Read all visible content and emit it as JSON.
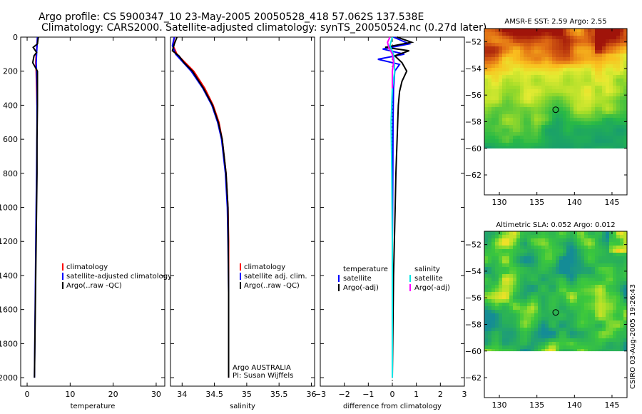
{
  "title_line1": "Argo profile: CS 5900347_10 23-May-2005 20050528_418 57.062S 137.538E",
  "title_line2": "Climatology: CARS2000. Satellite-adjusted climatology: synTS_20050524.nc (0.27d later)",
  "credit": "CSIRO 03-Aug-2005 19:26:43",
  "colors": {
    "climatology": "#ff0000",
    "satellite": "#0000ff",
    "argo": "#000000",
    "salinity": "#00e5e5",
    "salinity_argo": "#ff00ff"
  },
  "chart_data": [
    {
      "id": "temperature",
      "type": "line",
      "xlabel": "temperature",
      "xlim": [
        -1.5,
        32
      ],
      "ylim": [
        2050,
        0
      ],
      "xticks": [
        0,
        10,
        20,
        30
      ],
      "yticks": [
        0,
        200,
        400,
        600,
        800,
        1000,
        1200,
        1400,
        1600,
        1800,
        2000
      ],
      "legend": [
        "climatology",
        "satellite-adjusted climatology",
        "Argo(..raw -QC)"
      ],
      "series": [
        {
          "name": "climatology",
          "color": "climatology",
          "depth": [
            0,
            50,
            100,
            150,
            200,
            300,
            400
          ],
          "values": [
            2.4,
            2.3,
            2.1,
            2.0,
            2.1,
            2.2,
            2.3
          ]
        },
        {
          "name": "satellite-adjusted climatology",
          "color": "satellite",
          "depth": [
            0,
            50,
            100,
            150,
            200,
            300,
            500,
            800,
            1000,
            1500,
            2000
          ],
          "values": [
            2.4,
            2.3,
            2.2,
            2.1,
            2.2,
            2.3,
            2.3,
            2.2,
            2.1,
            1.9,
            1.7
          ]
        },
        {
          "name": "Argo(..raw -QC)",
          "color": "argo",
          "depth": [
            0,
            40,
            60,
            90,
            110,
            150,
            200,
            300,
            400,
            600,
            800,
            1000,
            1400,
            1800,
            2000
          ],
          "values": [
            2.6,
            2.4,
            1.4,
            2.2,
            1.6,
            1.3,
            2.4,
            2.4,
            2.4,
            2.3,
            2.3,
            2.2,
            2.0,
            1.8,
            1.7
          ]
        }
      ]
    },
    {
      "id": "salinity",
      "type": "line",
      "xlabel": "salinity",
      "xlim": [
        33.82,
        36.05
      ],
      "ylim": [
        2050,
        0
      ],
      "xticks": [
        34,
        34.5,
        35,
        35.5,
        36
      ],
      "legend": [
        "climatology",
        "satellite adj. clim.",
        "Argo(..raw -QC)"
      ],
      "annotation": [
        "Argo AUSTRALIA",
        "PI: Susan Wijffels"
      ],
      "series": [
        {
          "name": "climatology",
          "color": "climatology",
          "depth": [
            0,
            50,
            100,
            150,
            200,
            300,
            400,
            500,
            600,
            800,
            1000,
            1200,
            1500,
            2000
          ],
          "values": [
            33.88,
            33.86,
            33.92,
            34.05,
            34.18,
            34.35,
            34.48,
            34.57,
            34.62,
            34.68,
            34.71,
            34.72,
            34.72,
            34.72
          ]
        },
        {
          "name": "satellite adj. clim.",
          "color": "satellite",
          "depth": [
            0,
            50,
            100,
            150,
            200,
            300,
            400,
            500,
            600,
            800,
            1000,
            1200,
            1500,
            2000
          ],
          "values": [
            33.88,
            33.85,
            33.9,
            34.02,
            34.14,
            34.32,
            34.46,
            34.55,
            34.61,
            34.67,
            34.7,
            34.71,
            34.72,
            34.72
          ]
        },
        {
          "name": "Argo(..raw -QC)",
          "color": "argo",
          "depth": [
            0,
            40,
            80,
            110,
            150,
            200,
            300,
            400,
            500,
            600,
            800,
            1000,
            1500,
            2000
          ],
          "values": [
            33.92,
            33.88,
            33.85,
            33.95,
            34.03,
            34.16,
            34.33,
            34.47,
            34.56,
            34.62,
            34.68,
            34.71,
            34.72,
            34.72
          ]
        }
      ]
    },
    {
      "id": "difference",
      "type": "line",
      "xlabel": "difference from climatology",
      "xlim": [
        -3,
        3
      ],
      "ylim": [
        2050,
        0
      ],
      "xticks": [
        -3,
        -2,
        -1,
        0,
        1,
        2,
        3
      ],
      "legend_left": [
        "temperature",
        "satellite",
        "Argo(-adj)"
      ],
      "legend_right": [
        "salinity",
        "satellite",
        "Argo(-adj)"
      ],
      "series": [
        {
          "name": "temperature satellite",
          "color": "satellite",
          "depth": [
            0,
            40,
            70,
            100,
            130,
            160,
            200,
            300,
            500,
            800,
            1200,
            1600,
            2000
          ],
          "values": [
            0.05,
            0.7,
            -0.4,
            0.5,
            -0.6,
            0.3,
            0.1,
            0.05,
            0.03,
            0.02,
            0.0,
            0.0,
            0.0
          ]
        },
        {
          "name": "temperature Argo(-adj)",
          "color": "argo",
          "depth": [
            0,
            30,
            60,
            80,
            110,
            150,
            200,
            260,
            320,
            400,
            600,
            800,
            1000,
            1400,
            2000
          ],
          "values": [
            0.2,
            0.8,
            -0.3,
            0.7,
            0.1,
            0.4,
            0.6,
            0.4,
            0.3,
            0.25,
            0.2,
            0.15,
            0.12,
            0.05,
            0.0
          ]
        },
        {
          "name": "salinity satellite",
          "color": "salinity",
          "depth": [
            0,
            50,
            100,
            200,
            300,
            500,
            800,
            1200,
            2000
          ],
          "values": [
            0.0,
            -0.1,
            0.05,
            0.1,
            0.0,
            -0.05,
            -0.02,
            0.0,
            0.0
          ]
        },
        {
          "name": "salinity Argo(-adj)",
          "color": "salinity_argo",
          "depth": [
            0,
            30,
            60,
            100,
            150,
            200,
            300
          ],
          "values": [
            -0.1,
            -0.2,
            -0.15,
            0.0,
            0.05,
            0.0,
            0.0
          ]
        }
      ]
    },
    {
      "id": "sst_map",
      "type": "heatmap",
      "title": "AMSR-E SST: 2.59 Argo: 2.55",
      "xlim": [
        128,
        147
      ],
      "ylim": [
        -63.5,
        -51
      ],
      "data_ylim": [
        -60,
        -51
      ],
      "xticks": [
        130,
        135,
        140,
        145
      ],
      "yticks": [
        -52,
        -54,
        -56,
        -58,
        -60,
        -62
      ],
      "marker": [
        137.5,
        -57.1
      ],
      "colorscale": "sst"
    },
    {
      "id": "sla_map",
      "type": "heatmap",
      "title": "Altimetric SLA: 0.052 Argo: 0.012",
      "xlim": [
        128,
        147
      ],
      "ylim": [
        -63.5,
        -51
      ],
      "data_ylim": [
        -60,
        -51
      ],
      "xticks": [
        130,
        135,
        140,
        145
      ],
      "yticks": [
        -52,
        -54,
        -56,
        -58,
        -60,
        -62
      ],
      "marker": [
        137.5,
        -57.1
      ],
      "colorscale": "sla"
    }
  ]
}
